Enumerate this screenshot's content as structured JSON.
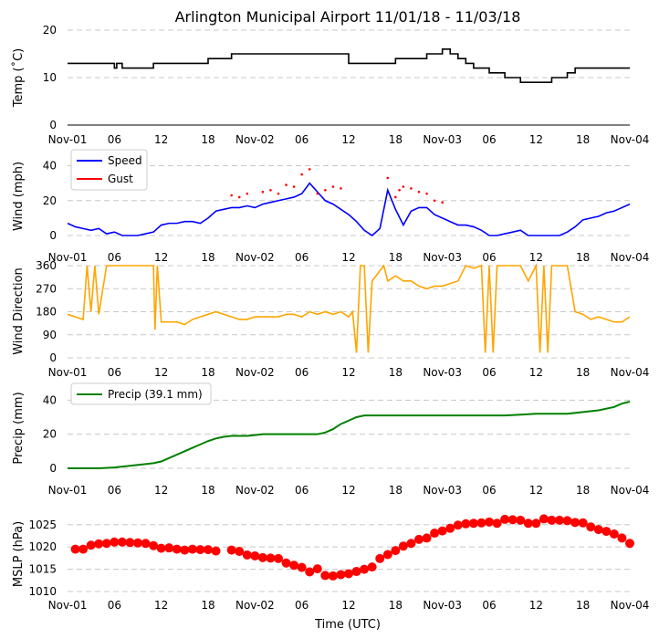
{
  "chart_data": {
    "title": "Arlington Municipal Airport 11/01/18 - 11/03/18",
    "xlabel": "Time (UTC)",
    "x_unit": "hours since Nov-01 00:00 UTC",
    "xlim": [
      0,
      72
    ],
    "x_ticks": [
      {
        "value": 0,
        "label": "Nov-01"
      },
      {
        "value": 6,
        "label": "06"
      },
      {
        "value": 12,
        "label": "12"
      },
      {
        "value": 18,
        "label": "18"
      },
      {
        "value": 24,
        "label": "Nov-02"
      },
      {
        "value": 30,
        "label": "06"
      },
      {
        "value": 36,
        "label": "12"
      },
      {
        "value": 42,
        "label": "18"
      },
      {
        "value": 48,
        "label": "Nov-03"
      },
      {
        "value": 54,
        "label": "06"
      },
      {
        "value": 60,
        "label": "12"
      },
      {
        "value": 66,
        "label": "18"
      },
      {
        "value": 72,
        "label": "Nov-04"
      }
    ],
    "panels": [
      {
        "id": "temp",
        "type": "line",
        "ylabel": "Temp ($^\\circ$C)",
        "ylabel_display": "Temp (˚C)",
        "ylim": [
          0,
          20
        ],
        "yticks": [
          0,
          10,
          20
        ],
        "grid": true,
        "series": [
          {
            "name": "Temp",
            "color": "#000000",
            "step": true,
            "x": [
              0,
              5.8,
              6,
              6.3,
              7,
              10,
              11,
              15,
              18,
              19,
              21,
              24,
              28,
              32,
              33,
              36,
              40,
              41,
              42,
              45,
              46,
              48,
              49,
              50,
              51,
              52,
              53,
              54,
              56,
              58,
              61,
              62,
              64,
              65,
              66,
              70,
              72
            ],
            "y": [
              13,
              13,
              12,
              13,
              12,
              12,
              13,
              13,
              14,
              14,
              15,
              15,
              15,
              15,
              15,
              13,
              13,
              13,
              14,
              14,
              15,
              16,
              15,
              14,
              13,
              12,
              12,
              11,
              10,
              9,
              9,
              10,
              11,
              12,
              12,
              12,
              12
            ]
          }
        ]
      },
      {
        "id": "wind",
        "type": "line",
        "ylabel": "Wind (mph)",
        "ylim": [
          0,
          45
        ],
        "yticks": [
          0,
          20,
          40
        ],
        "grid": true,
        "legend": "top-left",
        "series": [
          {
            "name": "Speed",
            "color": "#0000ff",
            "x": [
              0,
              1,
              2,
              3,
              4,
              5,
              6,
              7,
              8,
              9,
              10,
              11,
              12,
              13,
              14,
              15,
              16,
              17,
              18,
              19,
              20,
              21,
              22,
              23,
              24,
              25,
              26,
              27,
              28,
              29,
              30,
              31,
              32,
              33,
              34,
              35,
              36,
              37,
              38,
              39,
              40,
              41,
              42,
              43,
              44,
              45,
              46,
              47,
              48,
              49,
              50,
              51,
              52,
              53,
              54,
              55,
              56,
              57,
              58,
              59,
              60,
              61,
              62,
              63,
              64,
              65,
              66,
              67,
              68,
              69,
              70,
              71,
              72
            ],
            "y": [
              7,
              5,
              4,
              3,
              4,
              1,
              2,
              0,
              0,
              0,
              1,
              2,
              6,
              7,
              7,
              8,
              8,
              7,
              10,
              14,
              15,
              16,
              16,
              17,
              16,
              18,
              19,
              20,
              21,
              22,
              24,
              30,
              25,
              20,
              18,
              15,
              12,
              8,
              3,
              0,
              4,
              26,
              15,
              6,
              14,
              16,
              16,
              12,
              10,
              8,
              6,
              6,
              5,
              3,
              0,
              0,
              1,
              2,
              3,
              0,
              0,
              0,
              0,
              0,
              2,
              5,
              9,
              10,
              11,
              13,
              14,
              16,
              18
            ]
          },
          {
            "name": "Gust",
            "color": "#ff0000",
            "x": [
              21,
              22,
              23,
              25,
              26,
              27,
              28,
              29,
              30,
              31,
              32,
              33,
              34,
              35,
              41,
              42,
              42.5,
              43,
              44,
              45,
              46,
              47,
              48
            ],
            "y": [
              23,
              22,
              24,
              25,
              26,
              24,
              29,
              28,
              35,
              38,
              24,
              26,
              28,
              27,
              33,
              22,
              26,
              28,
              27,
              25,
              24,
              20,
              19
            ]
          }
        ]
      },
      {
        "id": "wdir",
        "type": "line",
        "ylabel": "Wind Direction",
        "ylim": [
          0,
          360
        ],
        "yticks": [
          0,
          90,
          180,
          270,
          360
        ],
        "grid": true,
        "series": [
          {
            "name": "Direction",
            "color": "#ffa500",
            "x": [
              0,
              1,
              2,
              2.5,
              3,
              3.5,
              4,
              5,
              6,
              7,
              8,
              9,
              10,
              11,
              11.2,
              11.5,
              12,
              13,
              14,
              15,
              16,
              17,
              18,
              19,
              20,
              21,
              22,
              23,
              24,
              25,
              26,
              27,
              28,
              29,
              30,
              31,
              32,
              33,
              34,
              35,
              36,
              36.5,
              37,
              37.5,
              38,
              38.5,
              39,
              40,
              40.5,
              41,
              42,
              43,
              44,
              45,
              46,
              47,
              48,
              49,
              50,
              51,
              52,
              53,
              53.5,
              54,
              54.5,
              55,
              56,
              57,
              58,
              59,
              60,
              60.5,
              61,
              61.5,
              62,
              63,
              64,
              65,
              66,
              67,
              68,
              69,
              70,
              71,
              72
            ],
            "y": [
              170,
              160,
              150,
              360,
              180,
              360,
              170,
              360,
              360,
              360,
              360,
              360,
              360,
              360,
              110,
              360,
              140,
              140,
              140,
              130,
              150,
              160,
              170,
              180,
              170,
              160,
              150,
              150,
              160,
              160,
              160,
              160,
              170,
              170,
              160,
              180,
              170,
              180,
              170,
              180,
              160,
              180,
              20,
              360,
              360,
              20,
              300,
              340,
              360,
              300,
              320,
              300,
              300,
              280,
              270,
              280,
              280,
              290,
              300,
              360,
              350,
              360,
              20,
              360,
              20,
              360,
              360,
              360,
              360,
              300,
              360,
              20,
              360,
              20,
              360,
              360,
              360,
              180,
              170,
              150,
              160,
              150,
              140,
              140,
              160
            ]
          }
        ]
      },
      {
        "id": "precip",
        "type": "line",
        "ylabel": "Precip (mm)",
        "ylim": [
          0,
          45
        ],
        "yticks": [
          0,
          20,
          40
        ],
        "grid": true,
        "legend": "top-left",
        "series": [
          {
            "name": "Precip (39.1 mm)",
            "color": "#008000",
            "x": [
              0,
              2,
              4,
              6,
              8,
              10,
              11,
              12,
              13,
              14,
              15,
              16,
              17,
              18,
              19,
              20,
              21,
              22,
              23,
              24,
              25,
              26,
              28,
              30,
              32,
              33,
              34,
              35,
              36,
              37,
              38,
              39,
              40,
              42,
              44,
              46,
              48,
              50,
              52,
              54,
              56,
              58,
              60,
              62,
              64,
              66,
              68,
              70,
              71,
              72
            ],
            "y": [
              0,
              0,
              0,
              0.5,
              1.5,
              2.5,
              3,
              4,
              6,
              8,
              10,
              12,
              14,
              16,
              17.5,
              18.5,
              19,
              19,
              19,
              19.5,
              20,
              20,
              20,
              20,
              20,
              21,
              23,
              26,
              28,
              30,
              31,
              31,
              31,
              31,
              31,
              31,
              31,
              31,
              31,
              31,
              31,
              31.5,
              32,
              32,
              32,
              33,
              34,
              36,
              38,
              39.1
            ]
          }
        ]
      },
      {
        "id": "mslp",
        "type": "scatter",
        "ylabel": "MSLP (hPa)",
        "ylim": [
          1010,
          1027
        ],
        "yticks": [
          1010,
          1015,
          1020,
          1025
        ],
        "grid": true,
        "series": [
          {
            "name": "MSLP",
            "color": "#ff0000",
            "x": [
              1,
              2,
              3,
              4,
              5,
              6,
              7,
              8,
              9,
              10,
              11,
              12,
              13,
              14,
              15,
              16,
              17,
              18,
              19,
              21,
              22,
              23,
              24,
              25,
              26,
              27,
              28,
              29,
              30,
              31,
              32,
              33,
              34,
              35,
              36,
              37,
              38,
              39,
              40,
              41,
              42,
              43,
              44,
              45,
              46,
              47,
              48,
              49,
              50,
              51,
              52,
              53,
              54,
              55,
              56,
              57,
              58,
              59,
              60,
              61,
              62,
              63,
              64,
              65,
              66,
              67,
              68,
              69,
              70,
              71,
              72
            ],
            "y": [
              1019.5,
              1019.5,
              1020.4,
              1020.7,
              1020.8,
              1021.1,
              1021.1,
              1021,
              1020.9,
              1020.8,
              1020.3,
              1019.7,
              1019.8,
              1019.5,
              1019.3,
              1019.5,
              1019.4,
              1019.4,
              1019.1,
              1019.3,
              1019,
              1018.2,
              1018,
              1017.6,
              1017.5,
              1017.4,
              1016.4,
              1015.9,
              1015.4,
              1014.4,
              1015.1,
              1013.6,
              1013.5,
              1013.8,
              1014,
              1014.5,
              1015,
              1015.5,
              1017.4,
              1018.3,
              1019.2,
              1020.2,
              1020.8,
              1021.7,
              1022,
              1023.1,
              1023.6,
              1024.2,
              1024.9,
              1025.2,
              1025.3,
              1025.4,
              1025.6,
              1025.3,
              1026.2,
              1026.1,
              1026,
              1025.3,
              1025.3,
              1026.3,
              1026,
              1026,
              1025.9,
              1025.5,
              1025.4,
              1024.5,
              1023.9,
              1023.5,
              1022.9,
              1022,
              1020.8
            ]
          }
        ]
      }
    ]
  }
}
